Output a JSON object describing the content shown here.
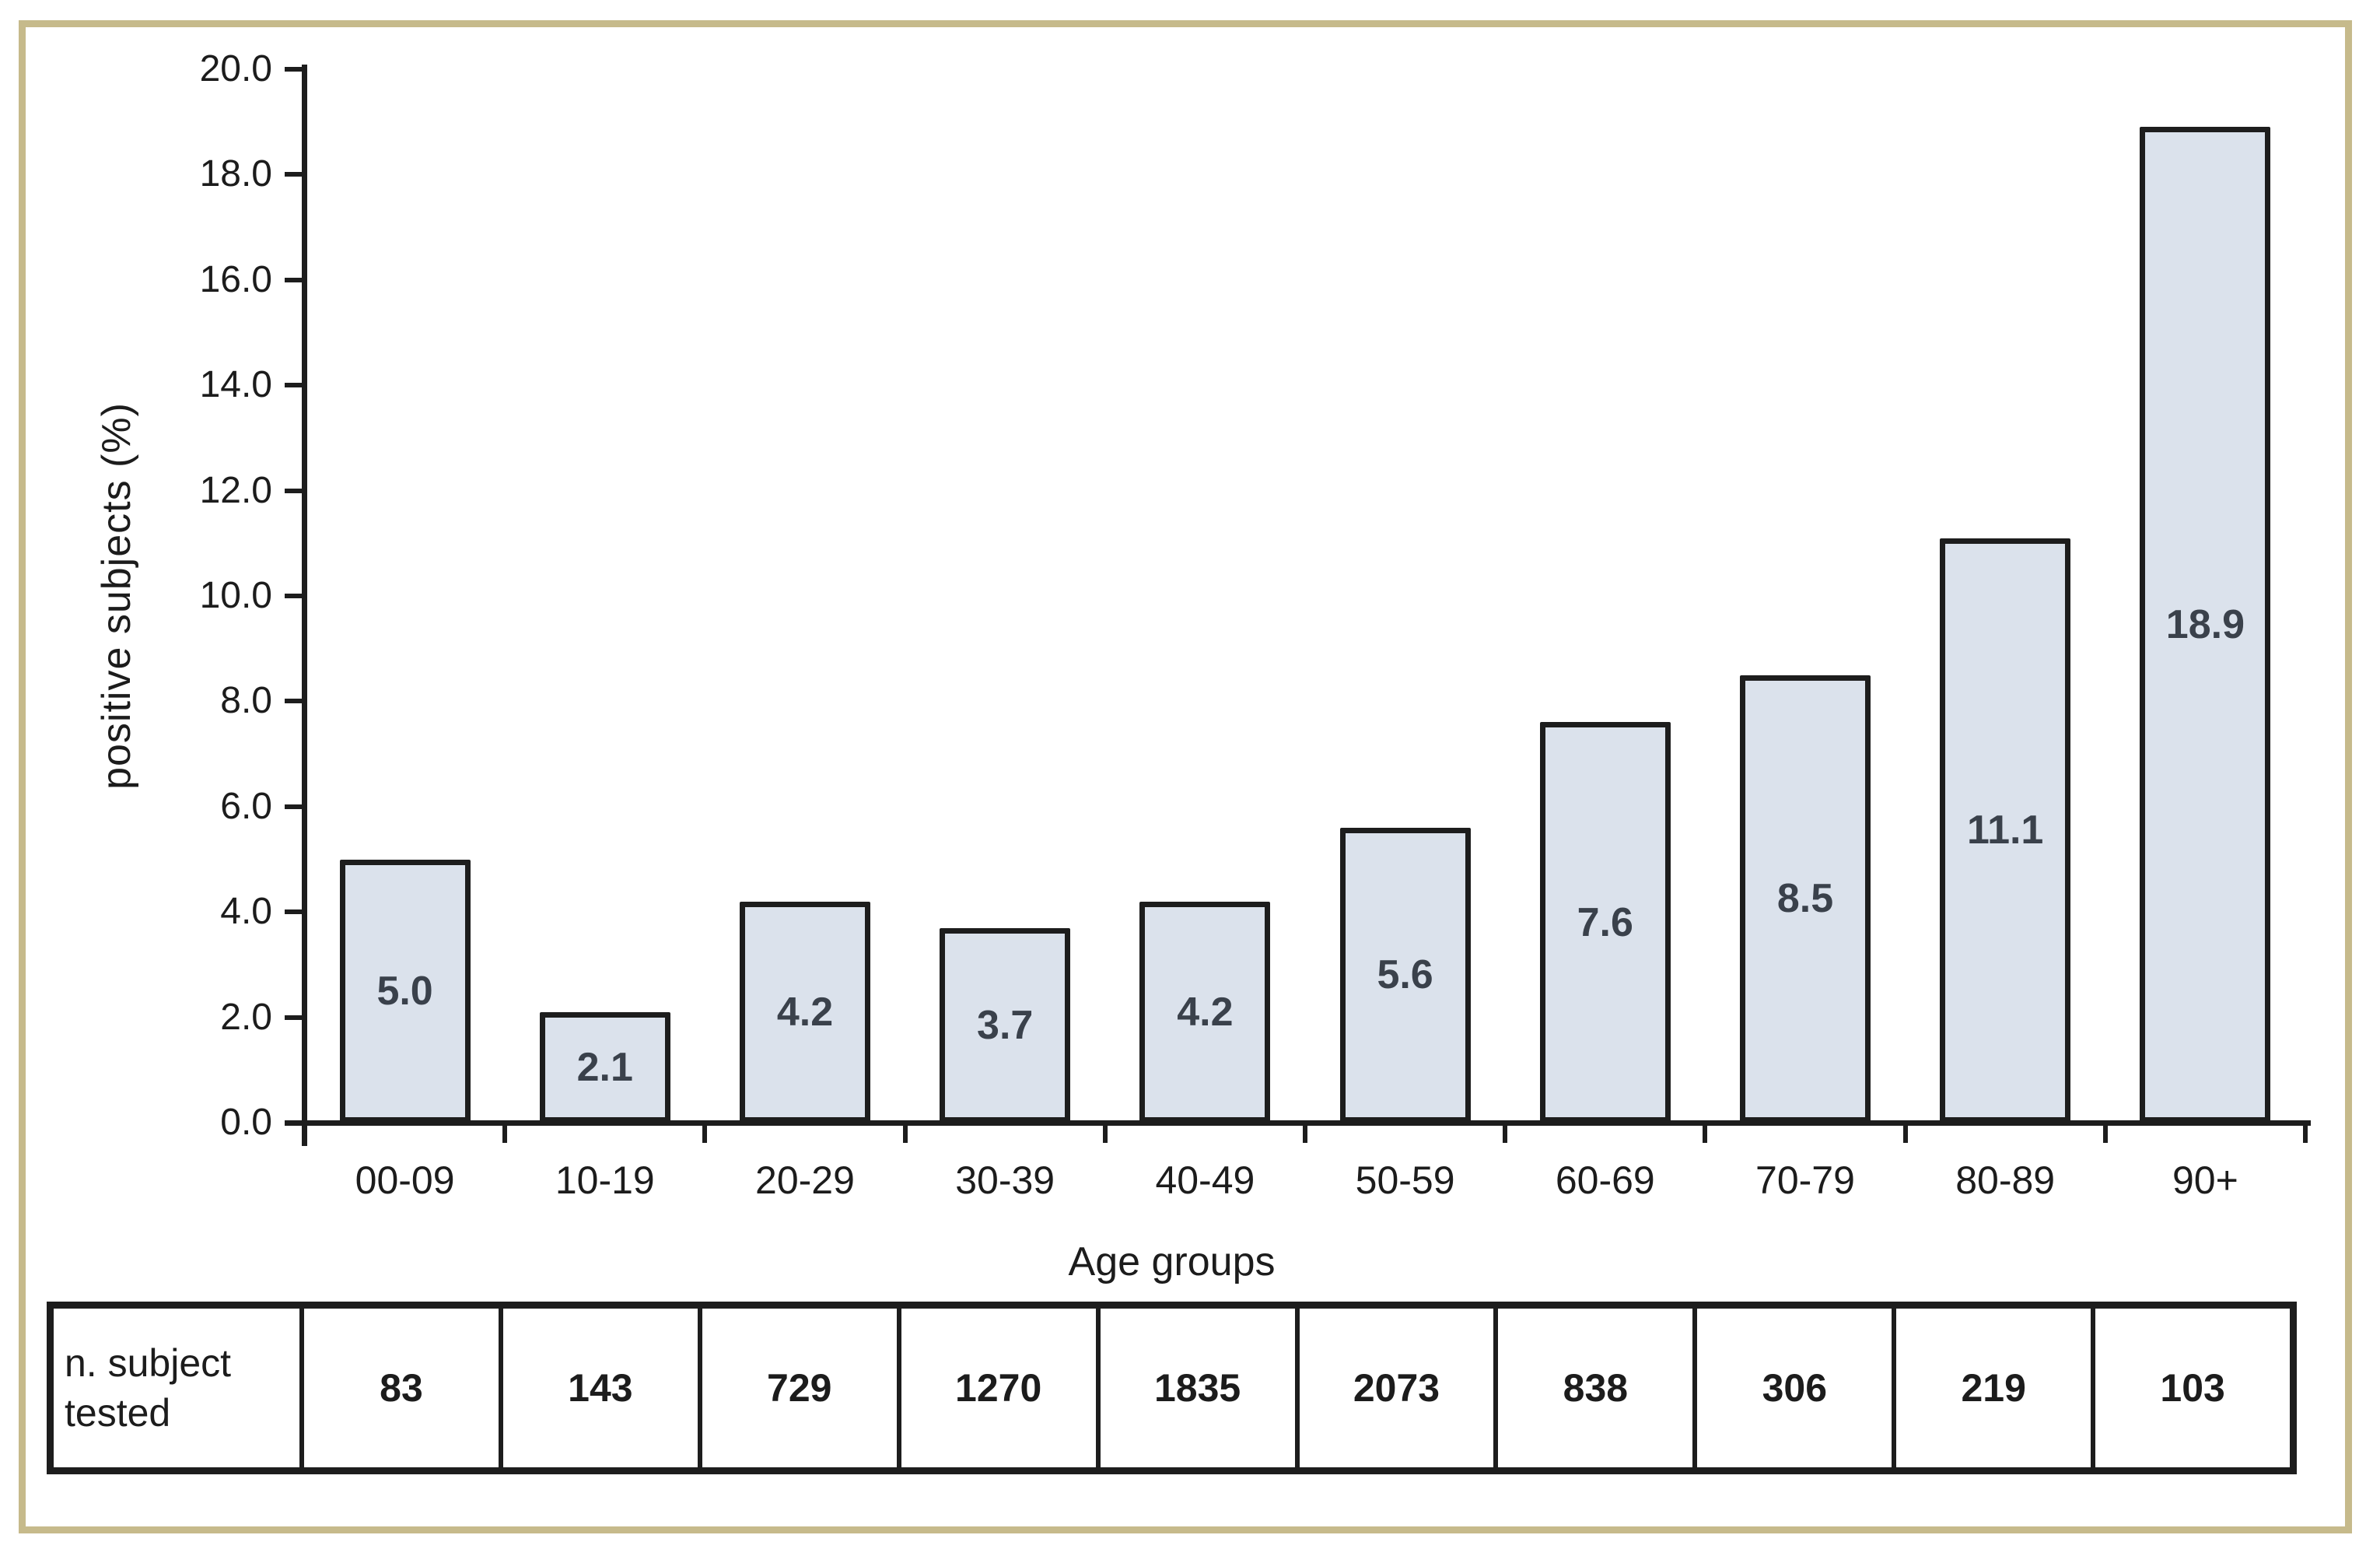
{
  "figure": {
    "background": "#ffffff",
    "frame_border_color": "#c6ba8b"
  },
  "chart_data": {
    "type": "bar",
    "title": "",
    "xlabel": "Age groups",
    "ylabel": "positive subjects (%)",
    "categories": [
      "00-09",
      "10-19",
      "20-29",
      "30-39",
      "40-49",
      "50-59",
      "60-69",
      "70-79",
      "80-89",
      "90+"
    ],
    "values": [
      5.0,
      2.1,
      4.2,
      3.7,
      4.2,
      5.6,
      7.6,
      8.5,
      11.1,
      18.9
    ],
    "value_labels": [
      "5.0",
      "2.1",
      "4.2",
      "3.7",
      "4.2",
      "5.6",
      "7.6",
      "8.5",
      "11.1",
      "18.9"
    ],
    "tested_counts": [
      83,
      143,
      729,
      1270,
      1835,
      2073,
      838,
      306,
      219,
      103
    ],
    "y_axis": {
      "min": 0,
      "max": 20,
      "step": 2
    },
    "y_tick_labels": [
      "0.0",
      "2.0",
      "4.0",
      "6.0",
      "8.0",
      "10.0",
      "12.0",
      "14.0",
      "16.0",
      "18.0",
      "20.0"
    ],
    "ylim": [
      0,
      20
    ],
    "grid": "off",
    "legend": "none",
    "bar_fill": "#dbe2ec",
    "bar_border": "#1d1d1d",
    "data_label_color": "#3a414b",
    "data_label_position": "inside-center"
  },
  "table": {
    "header": "n. subject tested",
    "values": [
      "83",
      "143",
      "729",
      "1270",
      "1835",
      "2073",
      "838",
      "306",
      "219",
      "103"
    ]
  }
}
